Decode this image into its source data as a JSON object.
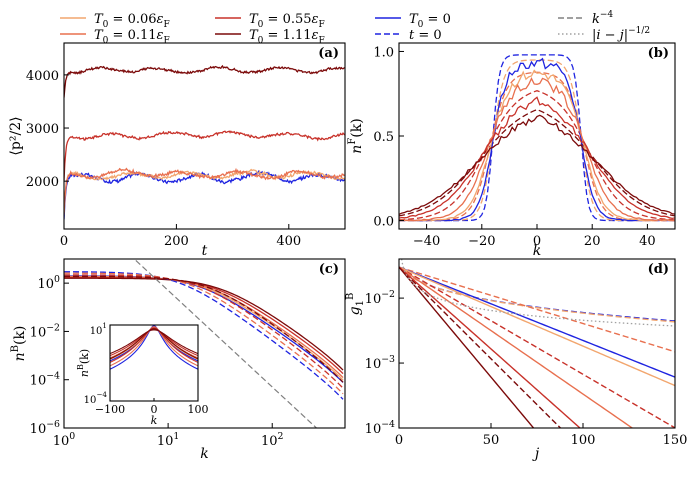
{
  "colors": {
    "T006": "#f2a66e",
    "T011": "#e8704f",
    "T055": "#c8322a",
    "T111": "#7c0a0a",
    "T0": "#1f24e0",
    "t0": "#1f24e0",
    "k4": "#808080",
    "ij": "#a0a0a0"
  },
  "legend": {
    "entries": [
      {
        "id": "T006",
        "base": "T",
        "sub": "0",
        "rest": " = 0.06",
        "unit": "ε",
        "unitsub": "F",
        "dash": "solid"
      },
      {
        "id": "T011",
        "base": "T",
        "sub": "0",
        "rest": " = 0.11",
        "unit": "ε",
        "unitsub": "F",
        "dash": "solid"
      },
      {
        "id": "T055",
        "base": "T",
        "sub": "0",
        "rest": " = 0.55",
        "unit": "ε",
        "unitsub": "F",
        "dash": "solid"
      },
      {
        "id": "T111",
        "base": "T",
        "sub": "0",
        "rest": " = 1.11",
        "unit": "ε",
        "unitsub": "F",
        "dash": "solid"
      },
      {
        "id": "T0",
        "base": "T",
        "sub": "0",
        "rest": " = 0",
        "unit": "",
        "unitsub": "",
        "dash": "solid"
      },
      {
        "id": "t0",
        "base": "t",
        "sub": "",
        "rest": " = 0",
        "unit": "",
        "unitsub": "",
        "dash": "dashed"
      },
      {
        "id": "k4",
        "base": "k",
        "sup": "−4",
        "rest": "",
        "dash": "dashed"
      },
      {
        "id": "ij",
        "base": "|i − j|",
        "sup": "−1/2",
        "rest": "",
        "dash": "dotted"
      }
    ]
  },
  "chart_data": [
    {
      "panel": "(a)",
      "type": "line",
      "xlabel": "t",
      "ylabel": "⟨p²/2⟩",
      "xlim": [
        0,
        500
      ],
      "ylim": [
        1100,
        4600
      ],
      "xticks": [
        0,
        200,
        400
      ],
      "yticks": [
        2000,
        3000,
        4000
      ],
      "series": [
        {
          "id": "T0",
          "name": "T0 = 0",
          "start": 1250,
          "mean": 2080,
          "amp": 80
        },
        {
          "id": "T006",
          "name": "T0 = 0.06εF",
          "start": 1300,
          "mean": 2110,
          "amp": 75
        },
        {
          "id": "T011",
          "name": "T0 = 0.11εF",
          "start": 1350,
          "mean": 2130,
          "amp": 70
        },
        {
          "id": "T055",
          "name": "T0 = 0.55εF",
          "start": 2000,
          "mean": 2860,
          "amp": 55
        },
        {
          "id": "T111",
          "name": "T0 = 1.11εF",
          "start": 3600,
          "mean": 4090,
          "amp": 55
        }
      ]
    },
    {
      "panel": "(b)",
      "type": "line",
      "xlabel": "k",
      "ylabel": "nF(k)",
      "xlim": [
        -50,
        50
      ],
      "ylim": [
        -0.05,
        1.05
      ],
      "xticks": [
        -40,
        -20,
        0,
        20,
        40
      ],
      "yticks": [
        0.0,
        0.5,
        1.0
      ],
      "series": [
        {
          "id": "t0",
          "name": "t = 0",
          "plateau": 0.98,
          "edge": 16,
          "width": 1.2,
          "style": "dashed"
        },
        {
          "id": "T006",
          "name": "T0 = 0.06εF",
          "plateau": 0.95,
          "edge": 16,
          "width": 2.0,
          "style": "dashed"
        },
        {
          "id": "T011",
          "name": "T0 = 0.11εF",
          "plateau": 0.88,
          "edge": 17,
          "width": 3.0,
          "style": "dashed"
        },
        {
          "id": "T055",
          "name": "T0 = 0.55εF",
          "plateau": 0.8,
          "edge": 19,
          "width": 6.0,
          "style": "dashed"
        },
        {
          "id": "T111",
          "name": "T0 = 1.11εF",
          "plateau": 0.72,
          "edge": 21,
          "width": 9.0,
          "style": "dashed"
        },
        {
          "id": "T0",
          "name": "T0 = 0",
          "plateau": 0.93,
          "edge": 16,
          "width": 2.5,
          "style": "solid"
        },
        {
          "id": "T006",
          "name": "T0 = 0.06εF",
          "plateau": 0.88,
          "edge": 17,
          "width": 3.5,
          "style": "solid"
        },
        {
          "id": "T011",
          "name": "T0 = 0.11εF",
          "plateau": 0.84,
          "edge": 18,
          "width": 4.5,
          "style": "solid"
        },
        {
          "id": "T055",
          "name": "T0 = 0.55εF",
          "plateau": 0.76,
          "edge": 20,
          "width": 7.5,
          "style": "solid"
        },
        {
          "id": "T111",
          "name": "T0 = 1.11εF",
          "plateau": 0.68,
          "edge": 22,
          "width": 10.0,
          "style": "solid"
        }
      ]
    },
    {
      "panel": "(c)",
      "type": "line",
      "scale": "loglog",
      "xlabel": "k",
      "ylabel": "nB(k)",
      "xlim": [
        1,
        500
      ],
      "ylim": [
        1e-06,
        10
      ],
      "xticks": [
        1,
        10,
        100
      ],
      "xticklabels": [
        "10^0",
        "10^1",
        "10^2"
      ],
      "yticks": [
        1,
        0.01,
        0.0001,
        1e-06
      ],
      "yticklabels": [
        "10^0",
        "10^−2",
        "10^−4",
        "10^−6"
      ],
      "series": [
        {
          "id": "T0",
          "name": "T0 = 0",
          "a": 2.0,
          "k0": 20,
          "p": 0.75,
          "style": "solid"
        },
        {
          "id": "T006",
          "name": "T0 = 0.06εF",
          "a": 1.9,
          "k0": 22,
          "p": 0.75,
          "style": "solid"
        },
        {
          "id": "T011",
          "name": "T0 = 0.11εF",
          "a": 1.85,
          "k0": 24,
          "p": 0.75,
          "style": "solid"
        },
        {
          "id": "T055",
          "name": "T0 = 0.55εF",
          "a": 1.7,
          "k0": 28,
          "p": 0.75,
          "style": "solid"
        },
        {
          "id": "T111",
          "name": "T0 = 1.11εF",
          "a": 1.6,
          "k0": 32,
          "p": 0.75,
          "style": "solid"
        },
        {
          "id": "t0",
          "name": "t = 0",
          "a": 3.0,
          "k0": 13,
          "p": 0.8,
          "style": "dashed"
        },
        {
          "id": "T011",
          "name": "T0 = 0.11εF",
          "a": 2.6,
          "k0": 16,
          "p": 0.8,
          "style": "dashed"
        },
        {
          "id": "T055",
          "name": "T0 = 0.55εF",
          "a": 2.2,
          "k0": 20,
          "p": 0.8,
          "style": "dashed"
        },
        {
          "id": "T111",
          "name": "T0 = 1.11εF",
          "a": 1.9,
          "k0": 25,
          "p": 0.8,
          "style": "dashed"
        }
      ],
      "reference_k4": {
        "id": "k4",
        "name": "k^-4",
        "C": 5000
      },
      "inset": {
        "xlabel": "k",
        "ylabel": "nB(k)",
        "xlim": [
          -100,
          100
        ],
        "ylim": [
          0.0001,
          10
        ],
        "xticks": [
          -100,
          0,
          100
        ],
        "yticklabels": [
          "10^1",
          "10^−4"
        ]
      }
    },
    {
      "panel": "(d)",
      "type": "line",
      "scale": "semilogy",
      "xlabel": "j",
      "ylabel": "g1B",
      "xlim": [
        0,
        150
      ],
      "ylim": [
        0.0001,
        0.04
      ],
      "xticks": [
        0,
        50,
        100,
        150
      ],
      "yticks": [
        0.01,
        0.001,
        0.0001
      ],
      "yticklabels": [
        "10^−2",
        "10^−3",
        "10^−4"
      ],
      "series": [
        {
          "id": "t0",
          "name": "t = 0",
          "decay": 0.009,
          "style": "dashed"
        },
        {
          "id": "T006",
          "name": "T0 = 0.06εF",
          "decay": 0.01,
          "style": "dashed"
        },
        {
          "id": "T011",
          "name": "T0 = 0.11εF",
          "decay": 0.02,
          "style": "dashed"
        },
        {
          "id": "T055",
          "name": "T0 = 0.55εF",
          "decay": 0.038,
          "style": "dashed"
        },
        {
          "id": "T111",
          "name": "T0 = 1.11εF",
          "decay": 0.065,
          "style": "dashed"
        },
        {
          "id": "T0",
          "name": "T0 = 0",
          "decay": 0.026,
          "style": "solid"
        },
        {
          "id": "T006",
          "name": "T0 = 0.06εF",
          "decay": 0.028,
          "style": "solid"
        },
        {
          "id": "T011",
          "name": "T0 = 0.11εF",
          "decay": 0.045,
          "style": "solid"
        },
        {
          "id": "T055",
          "name": "T0 = 0.55εF",
          "decay": 0.058,
          "style": "solid"
        },
        {
          "id": "T111",
          "name": "T0 = 1.11εF",
          "decay": 0.078,
          "style": "solid"
        }
      ],
      "reference_ij": {
        "id": "ij",
        "name": "|i-j|^-1/2",
        "start": 0.03
      }
    }
  ]
}
